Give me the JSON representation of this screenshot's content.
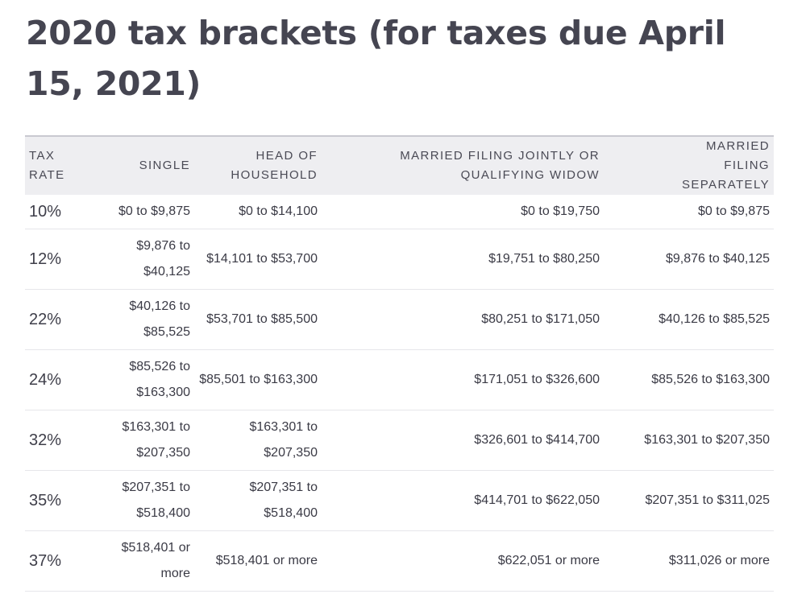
{
  "title": "2020 tax brackets (for taxes due April 15, 2021)",
  "table": {
    "headers": {
      "rate": "TAX RATE",
      "single": "SINGLE",
      "head": "HEAD OF HOUSEHOLD",
      "joint": "MARRIED FILING JOINTLY OR QUALIFYING WIDOW",
      "separate": "MARRIED FILING SEPARATELY"
    },
    "rows": [
      {
        "rate": "10%",
        "single": "$0 to $9,875",
        "head": "$0 to $14,100",
        "joint": "$0 to $19,750",
        "separate": "$0 to $9,875"
      },
      {
        "rate": "12%",
        "single": "$9,876 to $40,125",
        "head": "$14,101 to $53,700",
        "joint": "$19,751 to $80,250",
        "separate": "$9,876 to $40,125"
      },
      {
        "rate": "22%",
        "single": "$40,126 to $85,525",
        "head": "$53,701 to $85,500",
        "joint": "$80,251 to $171,050",
        "separate": "$40,126 to $85,525"
      },
      {
        "rate": "24%",
        "single": "$85,526 to $163,300",
        "head": "$85,501 to $163,300",
        "joint": "$171,051 to $326,600",
        "separate": "$85,526 to $163,300"
      },
      {
        "rate": "32%",
        "single": "$163,301 to $207,350",
        "head": "$163,301 to $207,350",
        "joint": "$326,601 to $414,700",
        "separate": "$163,301 to $207,350"
      },
      {
        "rate": "35%",
        "single": "$207,351 to $518,400",
        "head": "$207,351 to $518,400",
        "joint": "$414,701 to $622,050",
        "separate": "$207,351 to $311,025"
      },
      {
        "rate": "37%",
        "single": "$518,401 or more",
        "head": "$518,401 or more",
        "joint": "$622,051 or more",
        "separate": "$311,026 or more"
      }
    ]
  },
  "colors": {
    "title": "#454551",
    "text": "#3a3a45",
    "header_background": "#eeeef1",
    "header_top_border": "#c9c9d0",
    "row_divider": "#e6e6ea"
  }
}
